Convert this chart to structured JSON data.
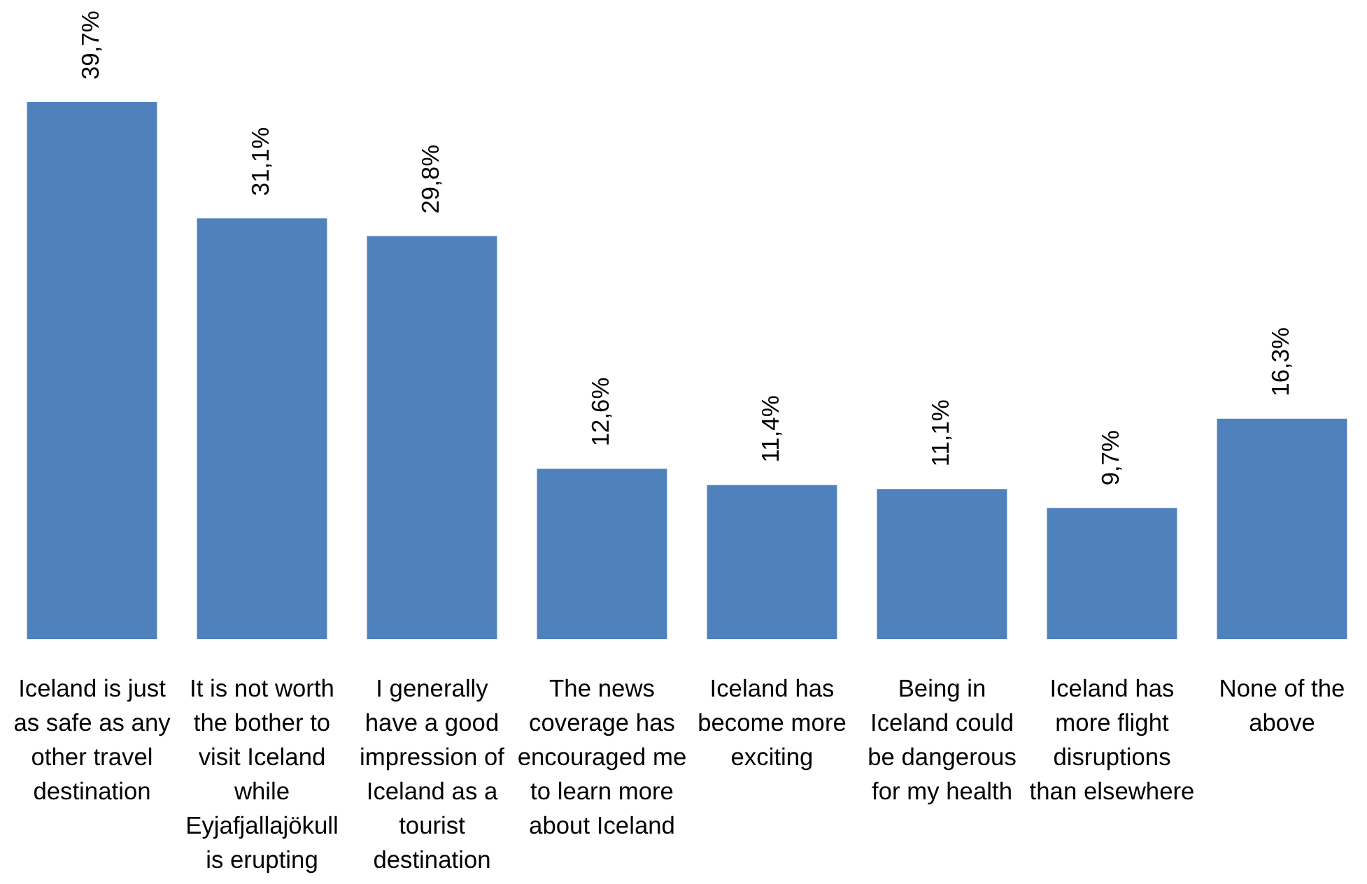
{
  "chart_data": {
    "type": "bar",
    "categories": [
      "Iceland is just as safe as any other travel destination",
      "It is not worth the bother to visit Iceland while Eyjafjallajökull is erupting",
      "I generally have a good impression of Iceland as a tourist destination",
      "The news coverage has encouraged me to learn more about Iceland",
      "Iceland has become more exciting",
      "Being in Iceland could be dangerous for my health",
      "Iceland has more flight disruptions than elsewhere",
      "None of the above"
    ],
    "values": [
      39.7,
      31.1,
      29.8,
      12.6,
      11.4,
      11.1,
      9.7,
      16.3
    ],
    "color": "#4f81bd",
    "value_labels": [
      "39,7%",
      "31,1%",
      "29,8%",
      "12,6%",
      "11,4%",
      "11,1%",
      "9,7%",
      "16,3%"
    ]
  }
}
